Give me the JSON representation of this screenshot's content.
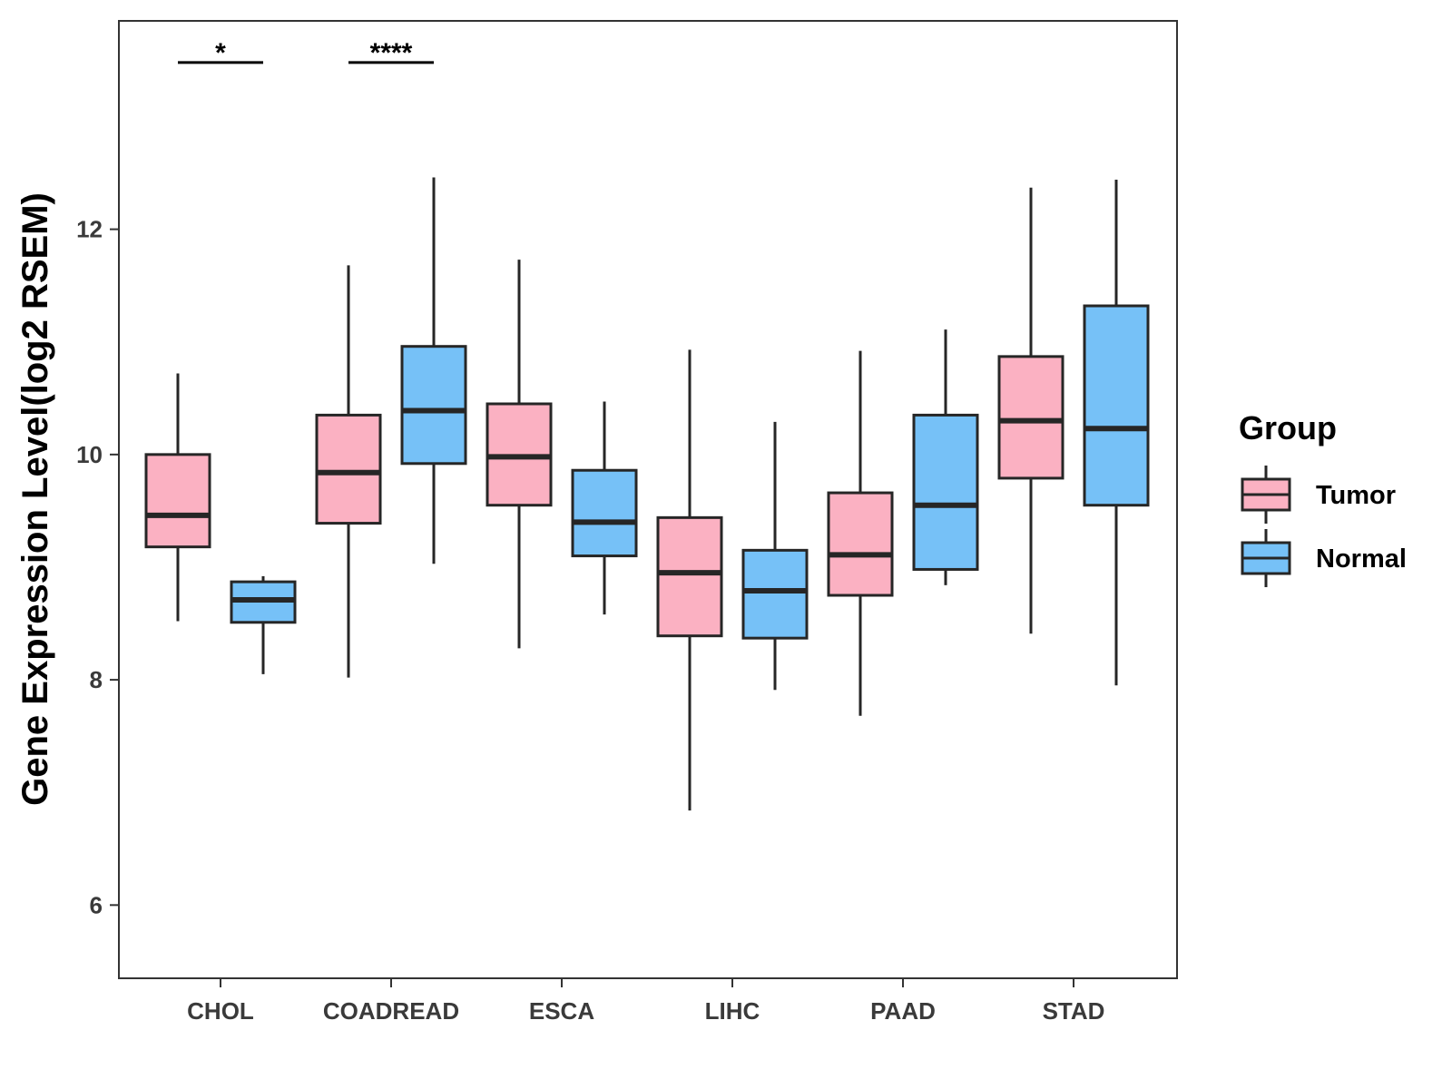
{
  "chart_data": {
    "type": "boxplot",
    "title": "",
    "xlabel": "",
    "ylabel": "Gene Expression Level(log2 RSEM)",
    "ylim": [
      5.35,
      13.85
    ],
    "yticks": [
      6,
      8,
      10,
      12
    ],
    "grid": false,
    "legend": {
      "title": "Group",
      "placement": "right"
    },
    "categories": [
      "CHOL",
      "COADREAD",
      "ESCA",
      "LIHC",
      "PAAD",
      "STAD"
    ],
    "series": [
      {
        "name": "Tumor",
        "color": "#FBB1C2",
        "boxes": [
          {
            "min": 8.52,
            "q1": 9.18,
            "median": 9.46,
            "q3": 10.0,
            "max": 10.72
          },
          {
            "min": 8.02,
            "q1": 9.39,
            "median": 9.84,
            "q3": 10.35,
            "max": 11.68
          },
          {
            "min": 8.28,
            "q1": 9.55,
            "median": 9.98,
            "q3": 10.45,
            "max": 11.73
          },
          {
            "min": 6.84,
            "q1": 8.39,
            "median": 8.95,
            "q3": 9.44,
            "max": 10.93
          },
          {
            "min": 7.68,
            "q1": 8.75,
            "median": 9.11,
            "q3": 9.66,
            "max": 10.92
          },
          {
            "min": 8.41,
            "q1": 9.79,
            "median": 10.3,
            "q3": 10.87,
            "max": 12.37
          }
        ]
      },
      {
        "name": "Normal",
        "color": "#76C1F7",
        "boxes": [
          {
            "min": 8.05,
            "q1": 8.51,
            "median": 8.71,
            "q3": 8.87,
            "max": 8.92
          },
          {
            "min": 9.03,
            "q1": 9.92,
            "median": 10.39,
            "q3": 10.96,
            "max": 12.46
          },
          {
            "min": 8.58,
            "q1": 9.1,
            "median": 9.4,
            "q3": 9.86,
            "max": 10.47
          },
          {
            "min": 7.91,
            "q1": 8.37,
            "median": 8.79,
            "q3": 9.15,
            "max": 10.29
          },
          {
            "min": 8.84,
            "q1": 8.98,
            "median": 9.55,
            "q3": 10.35,
            "max": 11.11
          },
          {
            "min": 7.95,
            "q1": 9.55,
            "median": 10.23,
            "q3": 11.32,
            "max": 12.44
          }
        ]
      }
    ],
    "annotations": [
      {
        "category": "CHOL",
        "label": "*",
        "y": 13.48
      },
      {
        "category": "COADREAD",
        "label": "****",
        "y": 13.48
      }
    ]
  },
  "colors": {
    "tumor": "#FBB1C2",
    "normal": "#76C1F7",
    "stroke": "#262626",
    "axis": "#333333"
  }
}
